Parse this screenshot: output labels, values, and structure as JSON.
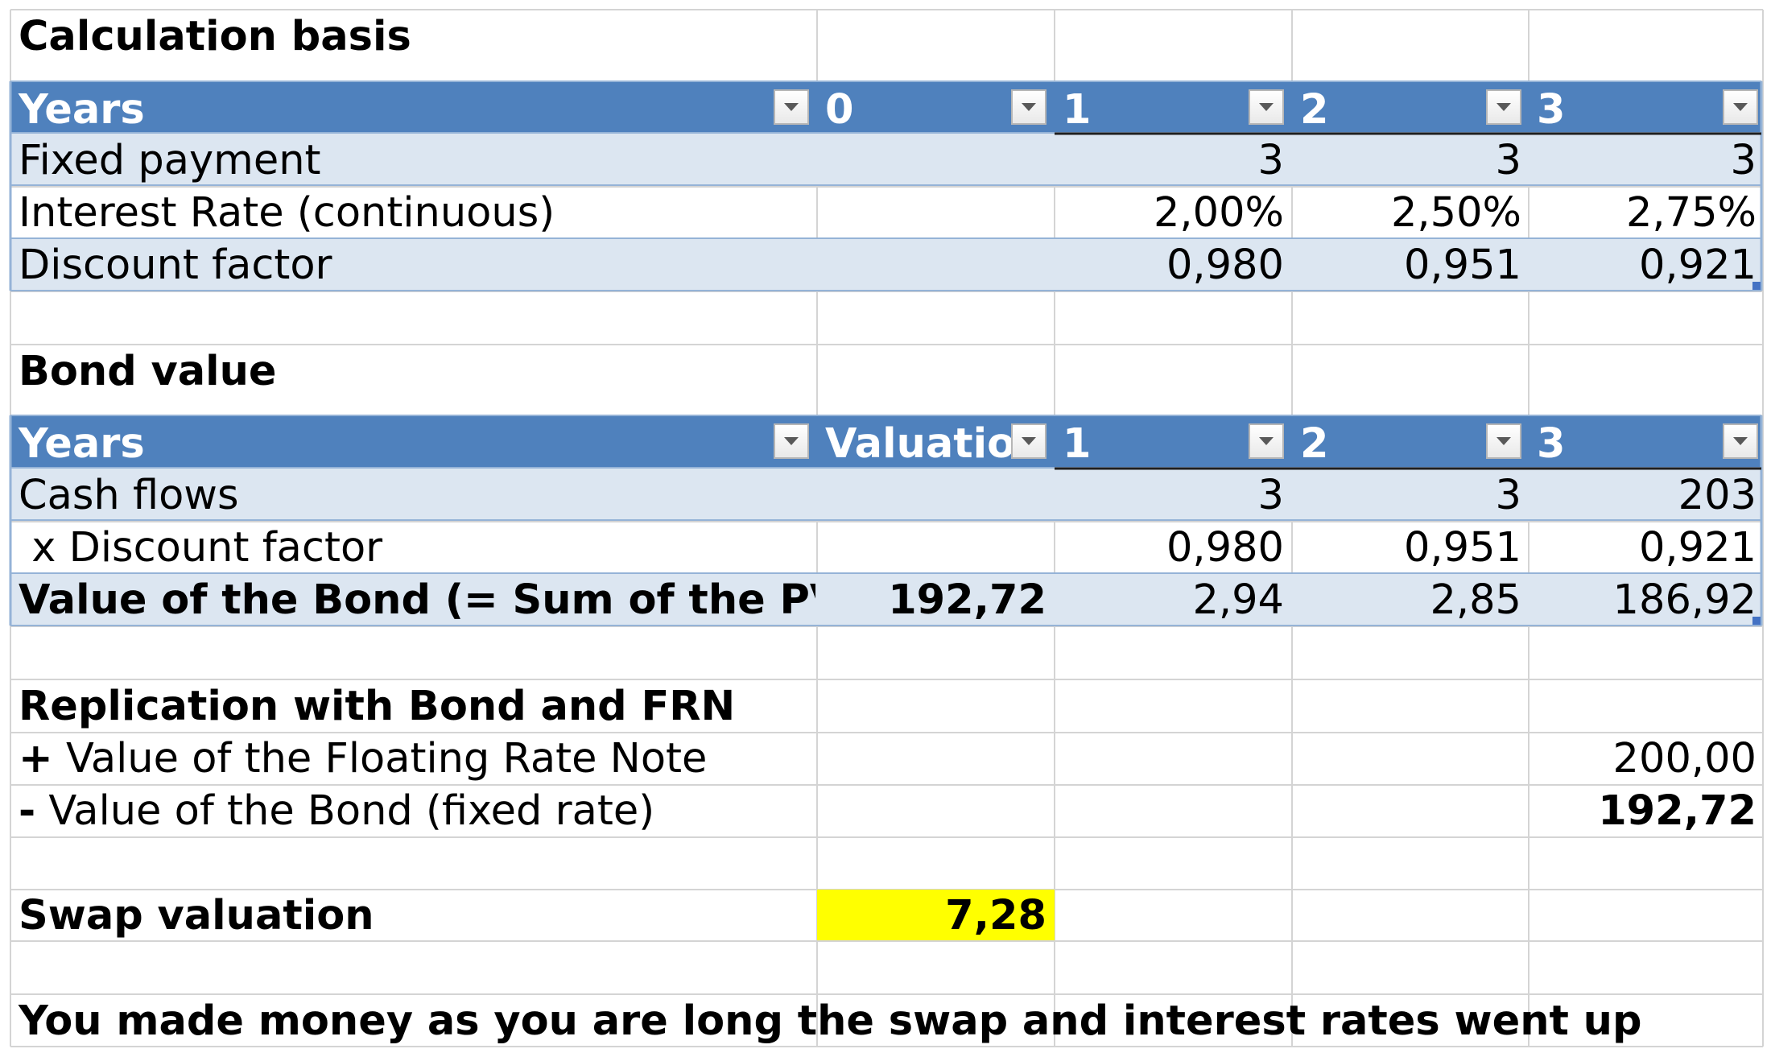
{
  "calc_basis": {
    "title": "Calculation basis",
    "header": [
      "Years",
      "0",
      "1",
      "2",
      "3"
    ],
    "rows": [
      {
        "label": "Fixed payment",
        "values": [
          "",
          "3",
          "3",
          "3"
        ]
      },
      {
        "label": "Interest Rate (continuous)",
        "values": [
          "",
          "2,00%",
          "2,50%",
          "2,75%"
        ]
      },
      {
        "label": "Discount factor",
        "values": [
          "",
          "0,980",
          "0,951",
          "0,921"
        ]
      }
    ]
  },
  "bond_value": {
    "title": "Bond value",
    "header": [
      "Years",
      "Valuation",
      "1",
      "2",
      "3"
    ],
    "rows": [
      {
        "label": "Cash flows",
        "values": [
          "",
          "3",
          "3",
          "203"
        ]
      },
      {
        "label": " x Discount factor",
        "values": [
          "",
          "0,980",
          "0,951",
          "0,921"
        ]
      },
      {
        "label": "Value of the Bond (= Sum of the PVs)",
        "values": [
          "192,72",
          "2,94",
          "2,85",
          "186,92"
        ]
      }
    ]
  },
  "replication": {
    "title": "Replication with Bond and FRN",
    "plus_sign": "+",
    "plus_label": " Value of the Floating Rate Note",
    "plus_value": "200,00",
    "minus_sign": "-",
    "minus_label": " Value of the Bond (fixed rate)",
    "minus_value": "192,72"
  },
  "swap": {
    "label": "Swap valuation",
    "value": "7,28"
  },
  "conclusion": "You made money as you are long the swap and interest rates went up",
  "colors": {
    "header_fill": "#4f81bd",
    "band_fill": "#dce6f1",
    "band_border": "#95b3d7",
    "gridline": "#d4d4d4",
    "highlight": "#ffff00"
  }
}
